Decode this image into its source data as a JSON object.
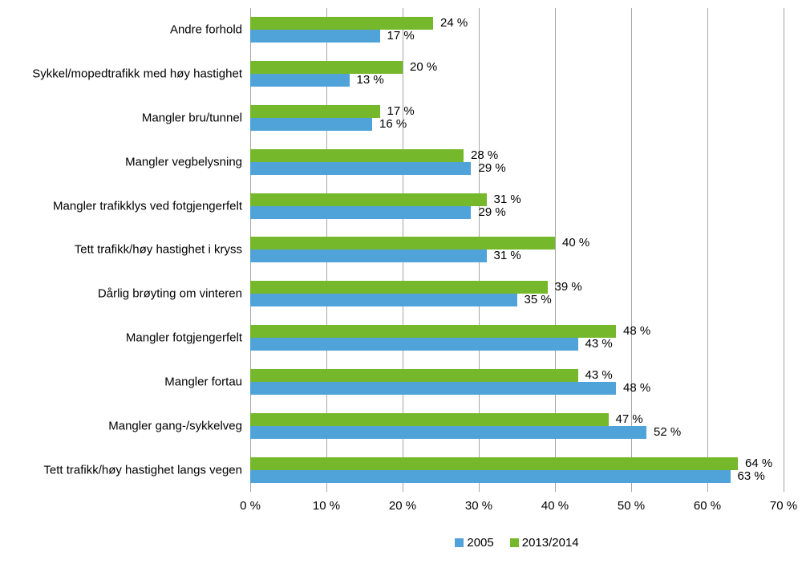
{
  "chart_data": {
    "type": "bar",
    "orientation": "horizontal",
    "title": "",
    "xlabel": "",
    "ylabel": "",
    "categories_top_to_bottom": [
      "Andre forhold",
      "Sykkel/mopedtrafikk med høy hastighet",
      "Mangler bru/tunnel",
      "Mangler vegbelysning",
      "Mangler trafikklys ved fotgjengerfelt",
      "Tett trafikk/høy hastighet i kryss",
      "Dårlig brøyting om vinteren",
      "Mangler fotgjengerfelt",
      "Mangler fortau",
      "Mangler gang-/sykkelveg",
      "Tett trafikk/høy hastighet langs vegen"
    ],
    "series": [
      {
        "name": "2005",
        "color": "#4FA3D8",
        "values": [
          17,
          13,
          16,
          29,
          29,
          31,
          35,
          43,
          48,
          52,
          63
        ]
      },
      {
        "name": "2013/2014",
        "color": "#76B82B",
        "values": [
          24,
          20,
          17,
          28,
          31,
          40,
          39,
          48,
          43,
          47,
          64
        ]
      }
    ],
    "bar_order_top_to_bottom_within_group": [
      "2013/2014",
      "2005"
    ],
    "value_suffix": " %",
    "xlim": [
      0,
      70
    ],
    "x_tick_values": [
      0,
      10,
      20,
      30,
      40,
      50,
      60,
      70
    ],
    "x_tick_labels": [
      "0 %",
      "10 %",
      "20 %",
      "30 %",
      "40 %",
      "50 %",
      "60 %",
      "70 %"
    ],
    "grid": "vertical",
    "gridline_color": "#A6A6A6",
    "legend_position": "bottom-center",
    "text_color": "#000000",
    "background_color": "#FFFFFF"
  }
}
